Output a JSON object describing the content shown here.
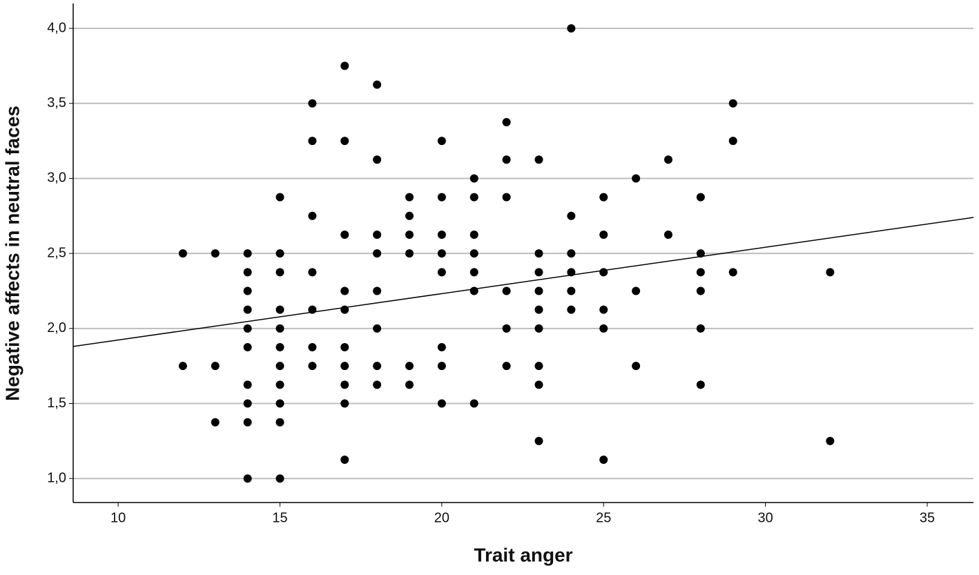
{
  "chart_data": {
    "type": "scatter",
    "x_label": "Trait anger",
    "y_label": "Negative affects in neutral faces",
    "x": [
      12,
      12,
      13,
      13,
      13,
      14,
      14,
      14,
      14,
      14,
      14,
      14,
      14,
      14,
      14,
      15,
      15,
      15,
      15,
      15,
      15,
      15,
      15,
      15,
      15,
      15,
      16,
      16,
      16,
      16,
      16,
      16,
      16,
      17,
      17,
      17,
      17,
      17,
      17,
      17,
      17,
      17,
      17,
      18,
      18,
      18,
      18,
      18,
      18,
      18,
      18,
      19,
      19,
      19,
      19,
      19,
      19,
      20,
      20,
      20,
      20,
      20,
      20,
      20,
      20,
      21,
      21,
      21,
      21,
      21,
      21,
      21,
      22,
      22,
      22,
      22,
      22,
      22,
      23,
      23,
      23,
      23,
      23,
      23,
      23,
      23,
      23,
      24,
      24,
      24,
      24,
      24,
      24,
      25,
      25,
      25,
      25,
      25,
      25,
      26,
      26,
      26,
      27,
      27,
      28,
      28,
      28,
      28,
      28,
      28,
      29,
      29,
      29,
      32,
      32
    ],
    "values": [
      2.5,
      1.75,
      2.5,
      1.75,
      1.375,
      2.5,
      2.375,
      2.25,
      2.125,
      2.0,
      1.875,
      1.625,
      1.5,
      1.375,
      1.0,
      2.875,
      2.5,
      2.375,
      2.125,
      2.0,
      1.875,
      1.75,
      1.625,
      1.5,
      1.375,
      1.0,
      3.5,
      3.25,
      2.75,
      2.375,
      2.125,
      1.875,
      1.75,
      3.75,
      3.25,
      2.625,
      2.25,
      2.125,
      1.875,
      1.75,
      1.625,
      1.5,
      1.125,
      3.625,
      3.125,
      2.625,
      2.5,
      2.25,
      2.0,
      1.75,
      1.625,
      2.875,
      2.75,
      2.625,
      2.5,
      1.75,
      1.625,
      3.25,
      2.875,
      2.625,
      2.5,
      2.375,
      1.875,
      1.75,
      1.5,
      3.0,
      2.875,
      2.625,
      2.5,
      2.375,
      2.25,
      1.5,
      3.375,
      3.125,
      2.875,
      2.25,
      2.0,
      1.75,
      3.125,
      2.5,
      2.375,
      2.25,
      2.125,
      2.0,
      1.75,
      1.625,
      1.25,
      4.0,
      2.75,
      2.5,
      2.375,
      2.25,
      2.125,
      2.875,
      2.625,
      2.375,
      2.125,
      2.0,
      1.125,
      3.0,
      2.25,
      1.75,
      3.125,
      2.625,
      2.875,
      2.5,
      2.375,
      2.25,
      2.0,
      1.625,
      3.5,
      3.25,
      2.375,
      2.375,
      1.25
    ],
    "color": "#000000",
    "fit_line": {
      "x": [
        8.61,
        36.43
      ],
      "y": [
        1.88,
        2.74
      ],
      "color": "#000000"
    },
    "xlim": [
      8.61,
      36.43
    ],
    "xticks": [
      10,
      15,
      20,
      25,
      30,
      35
    ],
    "ylim": [
      0.84,
      4.166
    ],
    "yticks": [
      {
        "value": 1.0,
        "label": "1,0"
      },
      {
        "value": 1.5,
        "label": "1,5"
      },
      {
        "value": 2.0,
        "label": "2,0"
      },
      {
        "value": 2.5,
        "label": "2,5"
      },
      {
        "value": 3.0,
        "label": "3,0"
      },
      {
        "value": 3.5,
        "label": "3,5"
      },
      {
        "value": 4.0,
        "label": "4,0"
      }
    ],
    "grid": true
  }
}
